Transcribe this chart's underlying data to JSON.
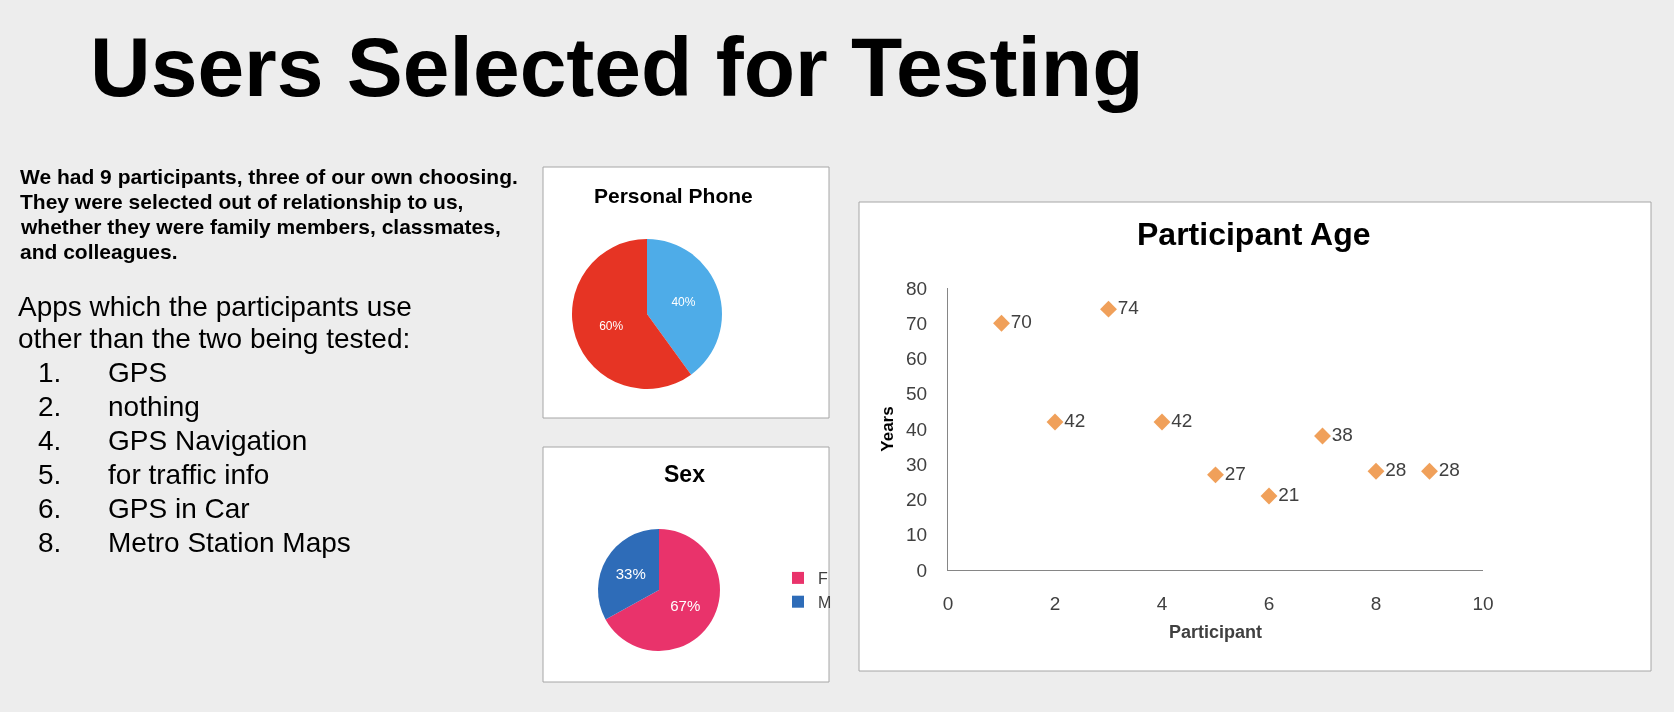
{
  "chart_data": [
    {
      "type": "other",
      "title": "Users Selected for Testing",
      "annotations": [
        "We had 9 participants, three of our own choosing.\nThey were selected out of relationship to us,\nwhether they were family members, classmates,\nand colleagues.",
        "Apps which the participants use\nother than the two being tested:",
        "1. GPS",
        "2. nothing",
        "4. GPS Navigation",
        "5. for traffic info",
        "6. GPS in Car",
        "8. Metro Station Maps"
      ]
    },
    {
      "type": "pie",
      "title": "Personal Phone",
      "categories": [
        null,
        null
      ],
      "values": [
        40,
        60
      ],
      "colors": [
        "#4eace8",
        "#e63424"
      ],
      "value_labels": [
        "40%",
        "60%"
      ],
      "legend": false
    },
    {
      "type": "pie",
      "title": "Sex",
      "categories": [
        "F",
        "M"
      ],
      "values": [
        67,
        33
      ],
      "colors": [
        "#e9336b",
        "#2e6cb8"
      ],
      "value_labels": [
        "67%",
        "33%"
      ],
      "legend": "right"
    },
    {
      "type": "scatter",
      "title": "Participant Age",
      "xlabel": "Participant",
      "ylabel": "Years",
      "x": [
        1,
        2,
        3,
        4,
        5,
        6,
        7,
        8,
        9
      ],
      "values": [
        70,
        42,
        74,
        42,
        27,
        21,
        38,
        28,
        28
      ],
      "color": "#f0a05a",
      "marker": "diamond",
      "data_labels": true,
      "xlim": [
        0,
        10
      ],
      "xticks": [
        0,
        2,
        4,
        6,
        8,
        10
      ],
      "ylim": [
        0,
        80
      ],
      "yticks": [
        0,
        10,
        20,
        30,
        40,
        50,
        60,
        70,
        80
      ],
      "grid": false
    }
  ]
}
